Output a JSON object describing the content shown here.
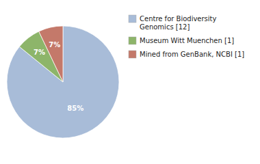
{
  "chart_data": {
    "type": "pie",
    "categories": [
      "Centre for Biodiversity\nGenomics [12]",
      "Museum Witt Muenchen [1]",
      "Mined from GenBank, NCBI [1]"
    ],
    "values": [
      85,
      7,
      7
    ],
    "value_labels": [
      "85%",
      "7%",
      "7%"
    ],
    "colors": [
      "#a8bcd8",
      "#8db56a",
      "#c4796a"
    ],
    "data_labels": true,
    "legend": "right"
  }
}
